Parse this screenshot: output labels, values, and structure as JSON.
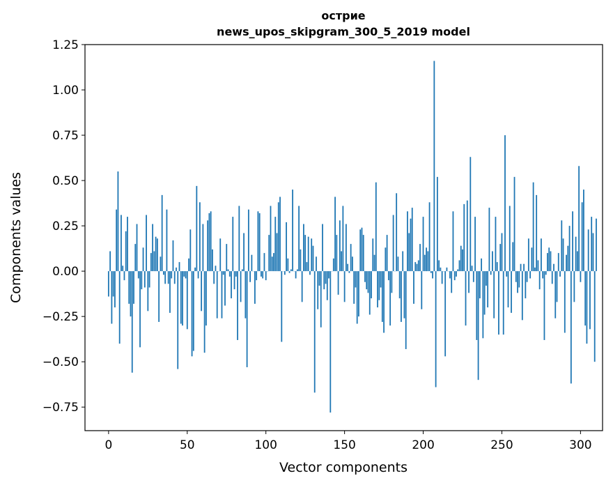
{
  "chart_data": {
    "type": "bar",
    "title": "острие",
    "subtitle": "news_upos_skipgram_300_5_2019 model",
    "xlabel": "Vector components",
    "ylabel": "Components values",
    "xlim": [
      -15,
      314
    ],
    "ylim": [
      -0.88,
      1.25
    ],
    "xticks": [
      0,
      50,
      100,
      150,
      200,
      250,
      300
    ],
    "xtick_labels": [
      "0",
      "50",
      "100",
      "150",
      "200",
      "250",
      "300"
    ],
    "yticks": [
      -0.75,
      -0.5,
      -0.25,
      0.0,
      0.25,
      0.5,
      0.75,
      1.0,
      1.25
    ],
    "ytick_labels": [
      "−0.75",
      "−0.50",
      "−0.25",
      "0.00",
      "0.25",
      "0.50",
      "0.75",
      "1.00",
      "1.25"
    ],
    "grid": false,
    "bar_color": "#1f77b4",
    "values": [
      -0.14,
      0.11,
      -0.29,
      -0.14,
      -0.2,
      0.34,
      0.55,
      -0.4,
      0.31,
      0.03,
      -0.05,
      0.22,
      0.3,
      -0.18,
      -0.25,
      -0.56,
      -0.18,
      0.15,
      0.26,
      -0.04,
      -0.42,
      -0.1,
      0.13,
      -0.09,
      0.31,
      -0.22,
      -0.09,
      0.1,
      0.26,
      0.11,
      0.19,
      0.18,
      -0.28,
      0.08,
      0.42,
      -0.02,
      -0.07,
      0.34,
      -0.07,
      -0.23,
      -0.04,
      0.17,
      -0.07,
      0.02,
      -0.54,
      0.05,
      -0.29,
      -0.3,
      -0.03,
      -0.04,
      -0.32,
      0.07,
      0.23,
      -0.47,
      -0.44,
      0.02,
      0.47,
      -0.04,
      0.38,
      -0.22,
      0.26,
      -0.45,
      -0.3,
      0.28,
      0.32,
      0.33,
      0.12,
      -0.07,
      0.03,
      -0.26,
      0.0,
      0.18,
      -0.26,
      -0.02,
      -0.19,
      0.15,
      0.01,
      -0.03,
      -0.15,
      0.3,
      -0.1,
      -0.03,
      -0.38,
      0.36,
      -0.17,
      0.01,
      0.21,
      -0.26,
      -0.53,
      0.34,
      -0.06,
      0.09,
      0.0,
      -0.18,
      -0.05,
      0.33,
      0.32,
      -0.03,
      -0.04,
      0.1,
      -0.05,
      0.0,
      0.2,
      0.36,
      0.08,
      0.1,
      0.3,
      0.21,
      0.38,
      0.41,
      -0.39,
      0.0,
      -0.02,
      0.27,
      0.07,
      -0.01,
      0.01,
      0.45,
      0.0,
      -0.04,
      0.01,
      0.36,
      0.12,
      -0.17,
      0.26,
      0.2,
      0.05,
      0.19,
      -0.02,
      0.18,
      0.14,
      -0.67,
      0.08,
      -0.21,
      -0.08,
      -0.31,
      0.26,
      -0.1,
      -0.07,
      -0.16,
      -0.04,
      -0.78,
      0.0,
      0.07,
      0.41,
      0.2,
      -0.13,
      0.28,
      0.11,
      0.36,
      -0.17,
      0.26,
      0.04,
      -0.01,
      0.15,
      0.08,
      -0.18,
      -0.09,
      -0.29,
      -0.25,
      0.23,
      0.24,
      0.2,
      -0.06,
      -0.1,
      -0.12,
      -0.24,
      -0.15,
      0.18,
      0.09,
      0.49,
      -0.2,
      -0.16,
      -0.09,
      -0.28,
      -0.34,
      0.13,
      0.2,
      -0.05,
      -0.3,
      -0.12,
      0.31,
      0.0,
      0.43,
      0.08,
      -0.15,
      -0.28,
      0.11,
      -0.26,
      -0.43,
      0.33,
      0.21,
      0.29,
      0.35,
      -0.18,
      0.05,
      0.04,
      0.06,
      0.15,
      -0.21,
      0.3,
      0.09,
      0.13,
      0.11,
      0.38,
      -0.01,
      -0.04,
      1.16,
      -0.64,
      0.52,
      0.06,
      0.02,
      -0.07,
      0.0,
      -0.47,
      0.02,
      0.0,
      -0.04,
      -0.12,
      0.33,
      -0.05,
      -0.03,
      0.01,
      0.06,
      0.14,
      0.12,
      0.37,
      -0.3,
      0.39,
      -0.12,
      0.63,
      0.03,
      -0.06,
      0.3,
      -0.38,
      -0.6,
      -0.15,
      0.07,
      -0.37,
      -0.24,
      -0.08,
      -0.2,
      0.35,
      -0.02,
      0.11,
      -0.26,
      0.3,
      0.05,
      -0.35,
      0.15,
      0.21,
      -0.35,
      0.75,
      -0.03,
      -0.2,
      0.36,
      -0.23,
      0.16,
      0.52,
      -0.06,
      -0.12,
      -0.09,
      0.04,
      -0.27,
      0.04,
      -0.15,
      -0.06,
      0.18,
      -0.04,
      0.13,
      0.49,
      0.02,
      0.42,
      0.06,
      -0.1,
      0.18,
      -0.04,
      -0.38,
      -0.02,
      0.1,
      0.13,
      0.11,
      -0.07,
      0.04,
      -0.26,
      -0.17,
      0.1,
      -0.03,
      0.28,
      0.18,
      -0.34,
      0.09,
      0.14,
      0.25,
      -0.62,
      0.33,
      -0.17,
      0.19,
      0.11,
      0.58,
      -0.06,
      0.38,
      0.45,
      -0.3,
      -0.4,
      0.23,
      -0.32,
      0.3,
      0.21,
      -0.5,
      0.29
    ]
  }
}
